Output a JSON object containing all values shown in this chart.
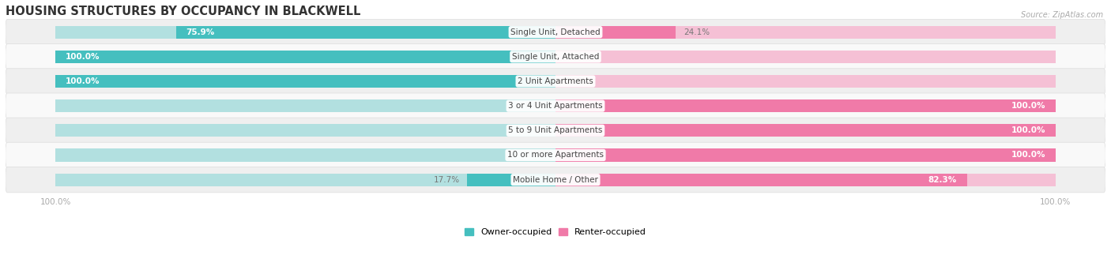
{
  "title": "HOUSING STRUCTURES BY OCCUPANCY IN BLACKWELL",
  "source": "Source: ZipAtlas.com",
  "categories": [
    "Single Unit, Detached",
    "Single Unit, Attached",
    "2 Unit Apartments",
    "3 or 4 Unit Apartments",
    "5 to 9 Unit Apartments",
    "10 or more Apartments",
    "Mobile Home / Other"
  ],
  "owner_pct": [
    75.9,
    100.0,
    100.0,
    0.0,
    0.0,
    0.0,
    17.7
  ],
  "renter_pct": [
    24.1,
    0.0,
    0.0,
    100.0,
    100.0,
    100.0,
    82.3
  ],
  "owner_color": "#45bfbf",
  "renter_color": "#f07aa8",
  "owner_color_light": "#b2e0e0",
  "renter_color_light": "#f5c0d5",
  "row_bg_even": "#efefef",
  "row_bg_odd": "#f9f9f9",
  "title_fontsize": 10.5,
  "label_fontsize": 7.5,
  "tick_fontsize": 7.5,
  "source_fontsize": 7,
  "legend_fontsize": 8
}
